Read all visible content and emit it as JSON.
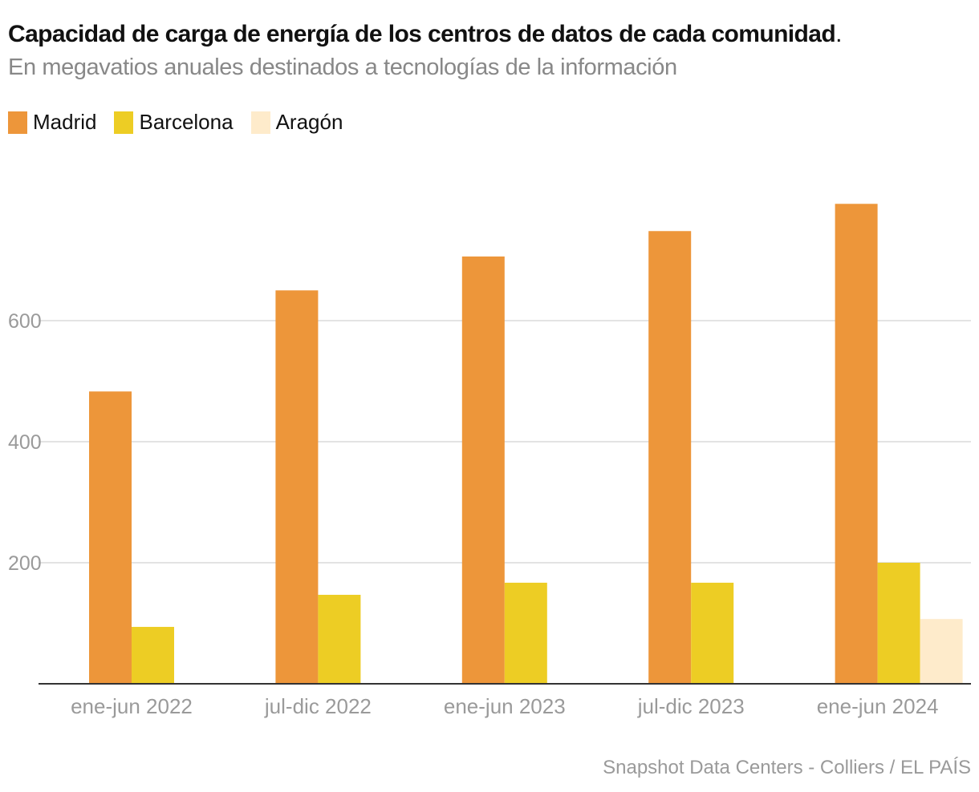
{
  "chart_data": {
    "type": "bar",
    "title": "Capacidad de carga de energía de los centros de datos de cada comunidad",
    "title_period": ".",
    "subtitle": "En megavatios anuales destinados a tecnologías de la información",
    "categories": [
      "ene-jun 2022",
      "jul-dic 2022",
      "ene-jun 2023",
      "jul-dic 2023",
      "ene-jun 2024"
    ],
    "series": [
      {
        "name": "Madrid",
        "color": "#ED963A",
        "values": [
          483,
          650,
          706,
          748,
          793
        ]
      },
      {
        "name": "Barcelona",
        "color": "#EDCD24",
        "values": [
          94,
          147,
          167,
          167,
          200
        ]
      },
      {
        "name": "Aragón",
        "color": "#FEEBCB",
        "values": [
          null,
          null,
          null,
          null,
          107
        ]
      }
    ],
    "xlabel": "",
    "ylabel": "",
    "ylim": [
      0,
      800
    ],
    "yticks": [
      200,
      400,
      600
    ],
    "grid": true,
    "legend": "top-left",
    "source": "Snapshot Data Centers - Colliers / EL PAÍS"
  }
}
